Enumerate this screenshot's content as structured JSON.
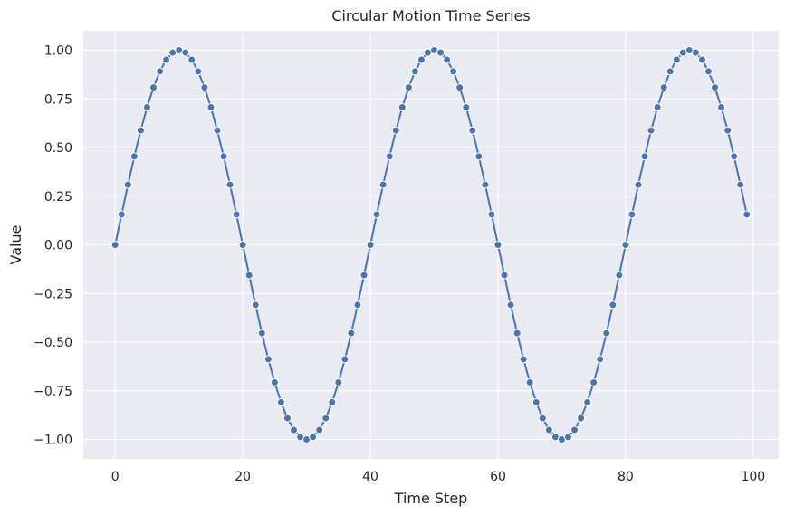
{
  "chart_data": {
    "type": "line",
    "title": "Circular Motion Time Series",
    "xlabel": "Time Step",
    "ylabel": "Value",
    "xlim": [
      -5,
      104
    ],
    "ylim": [
      -1.1,
      1.1
    ],
    "xticks": [
      0,
      20,
      40,
      60,
      80,
      100
    ],
    "xtick_labels": [
      "0",
      "20",
      "40",
      "60",
      "80",
      "100"
    ],
    "yticks": [
      -1.0,
      -0.75,
      -0.5,
      -0.25,
      0.0,
      0.25,
      0.5,
      0.75,
      1.0
    ],
    "ytick_labels": [
      "−1.00",
      "−0.75",
      "−0.50",
      "−0.25",
      "0.00",
      "0.25",
      "0.50",
      "0.75",
      "1.00"
    ],
    "grid": true,
    "legend": "none",
    "colors": {
      "background": "#eaeaf2",
      "grid": "#ffffff",
      "series": "#4c72b0"
    },
    "series": [
      {
        "marker": "circle",
        "x": [
          0,
          1,
          2,
          3,
          4,
          5,
          6,
          7,
          8,
          9,
          10,
          11,
          12,
          13,
          14,
          15,
          16,
          17,
          18,
          19,
          20,
          21,
          22,
          23,
          24,
          25,
          26,
          27,
          28,
          29,
          30,
          31,
          32,
          33,
          34,
          35,
          36,
          37,
          38,
          39,
          40,
          41,
          42,
          43,
          44,
          45,
          46,
          47,
          48,
          49,
          50,
          51,
          52,
          53,
          54,
          55,
          56,
          57,
          58,
          59,
          60,
          61,
          62,
          63,
          64,
          65,
          66,
          67,
          68,
          69,
          70,
          71,
          72,
          73,
          74,
          75,
          76,
          77,
          78,
          79,
          80,
          81,
          82,
          83,
          84,
          85,
          86,
          87,
          88,
          89,
          90,
          91,
          92,
          93,
          94,
          95,
          96,
          97,
          98,
          99
        ],
        "values": [
          0.0,
          0.156,
          0.309,
          0.454,
          0.588,
          0.707,
          0.809,
          0.891,
          0.951,
          0.988,
          1.0,
          0.988,
          0.951,
          0.891,
          0.809,
          0.707,
          0.588,
          0.454,
          0.309,
          0.156,
          0.0,
          -0.156,
          -0.309,
          -0.454,
          -0.588,
          -0.707,
          -0.809,
          -0.891,
          -0.951,
          -0.988,
          -1.0,
          -0.988,
          -0.951,
          -0.891,
          -0.809,
          -0.707,
          -0.588,
          -0.454,
          -0.309,
          -0.156,
          0.0,
          0.156,
          0.309,
          0.454,
          0.588,
          0.707,
          0.809,
          0.891,
          0.951,
          0.988,
          1.0,
          0.988,
          0.951,
          0.891,
          0.809,
          0.707,
          0.588,
          0.454,
          0.309,
          0.156,
          0.0,
          -0.156,
          -0.309,
          -0.454,
          -0.588,
          -0.707,
          -0.809,
          -0.891,
          -0.951,
          -0.988,
          -1.0,
          -0.988,
          -0.951,
          -0.891,
          -0.809,
          -0.707,
          -0.588,
          -0.454,
          -0.309,
          -0.156,
          0.0,
          0.156,
          0.309,
          0.454,
          0.588,
          0.707,
          0.809,
          0.891,
          0.951,
          0.988,
          1.0,
          0.988,
          0.951,
          0.891,
          0.809,
          0.707,
          0.588,
          0.454,
          0.309,
          0.156
        ]
      }
    ]
  }
}
